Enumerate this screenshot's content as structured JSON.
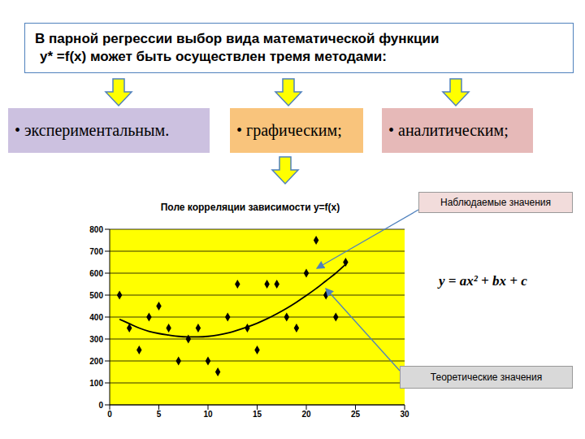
{
  "header": {
    "lines": [
      "В парной регрессии выбор вида математической функции",
      "y* =f(x) может быть осуществлен тремя методами:"
    ]
  },
  "methods": [
    "• экспериментальным.",
    "• графическим;",
    "• аналитическим;"
  ],
  "chart_data": {
    "type": "scatter",
    "title": "Поле корреляции зависимости y=f(x)",
    "series": [
      {
        "name": "Наблюдаемые значения",
        "type": "scatter",
        "marker": "diamond",
        "color": "#000000",
        "x": [
          1,
          2,
          3,
          4,
          5,
          6,
          7,
          8,
          9,
          10,
          11,
          12,
          13,
          14,
          15,
          16,
          17,
          18,
          19,
          20,
          21,
          22,
          23,
          24
        ],
        "values": [
          500,
          350,
          250,
          400,
          450,
          350,
          200,
          300,
          350,
          200,
          150,
          400,
          550,
          350,
          250,
          550,
          550,
          400,
          350,
          600,
          750,
          500,
          400,
          650
        ]
      },
      {
        "name": "Теоретические значения",
        "type": "line",
        "line_style": "solid",
        "color": "#000000",
        "x": [
          1,
          2,
          3,
          4,
          5,
          6,
          7,
          8,
          9,
          10,
          11,
          12,
          13,
          14,
          15,
          16,
          17,
          18,
          19,
          20,
          21,
          22,
          23,
          24
        ],
        "values": [
          390,
          370,
          350,
          335,
          325,
          318,
          312,
          310,
          310,
          312,
          318,
          327,
          340,
          355,
          372,
          392,
          415,
          440,
          468,
          498,
          530,
          565,
          600,
          640
        ]
      }
    ],
    "xlim": [
      0,
      30
    ],
    "xticks": [
      0,
      5,
      10,
      15,
      20,
      25,
      30
    ],
    "ylim": [
      0,
      800
    ],
    "yticks": [
      0,
      100,
      200,
      300,
      400,
      500,
      600,
      700,
      800
    ],
    "grid": true,
    "annotations": [
      "y = ax² + bx + c"
    ]
  }
}
